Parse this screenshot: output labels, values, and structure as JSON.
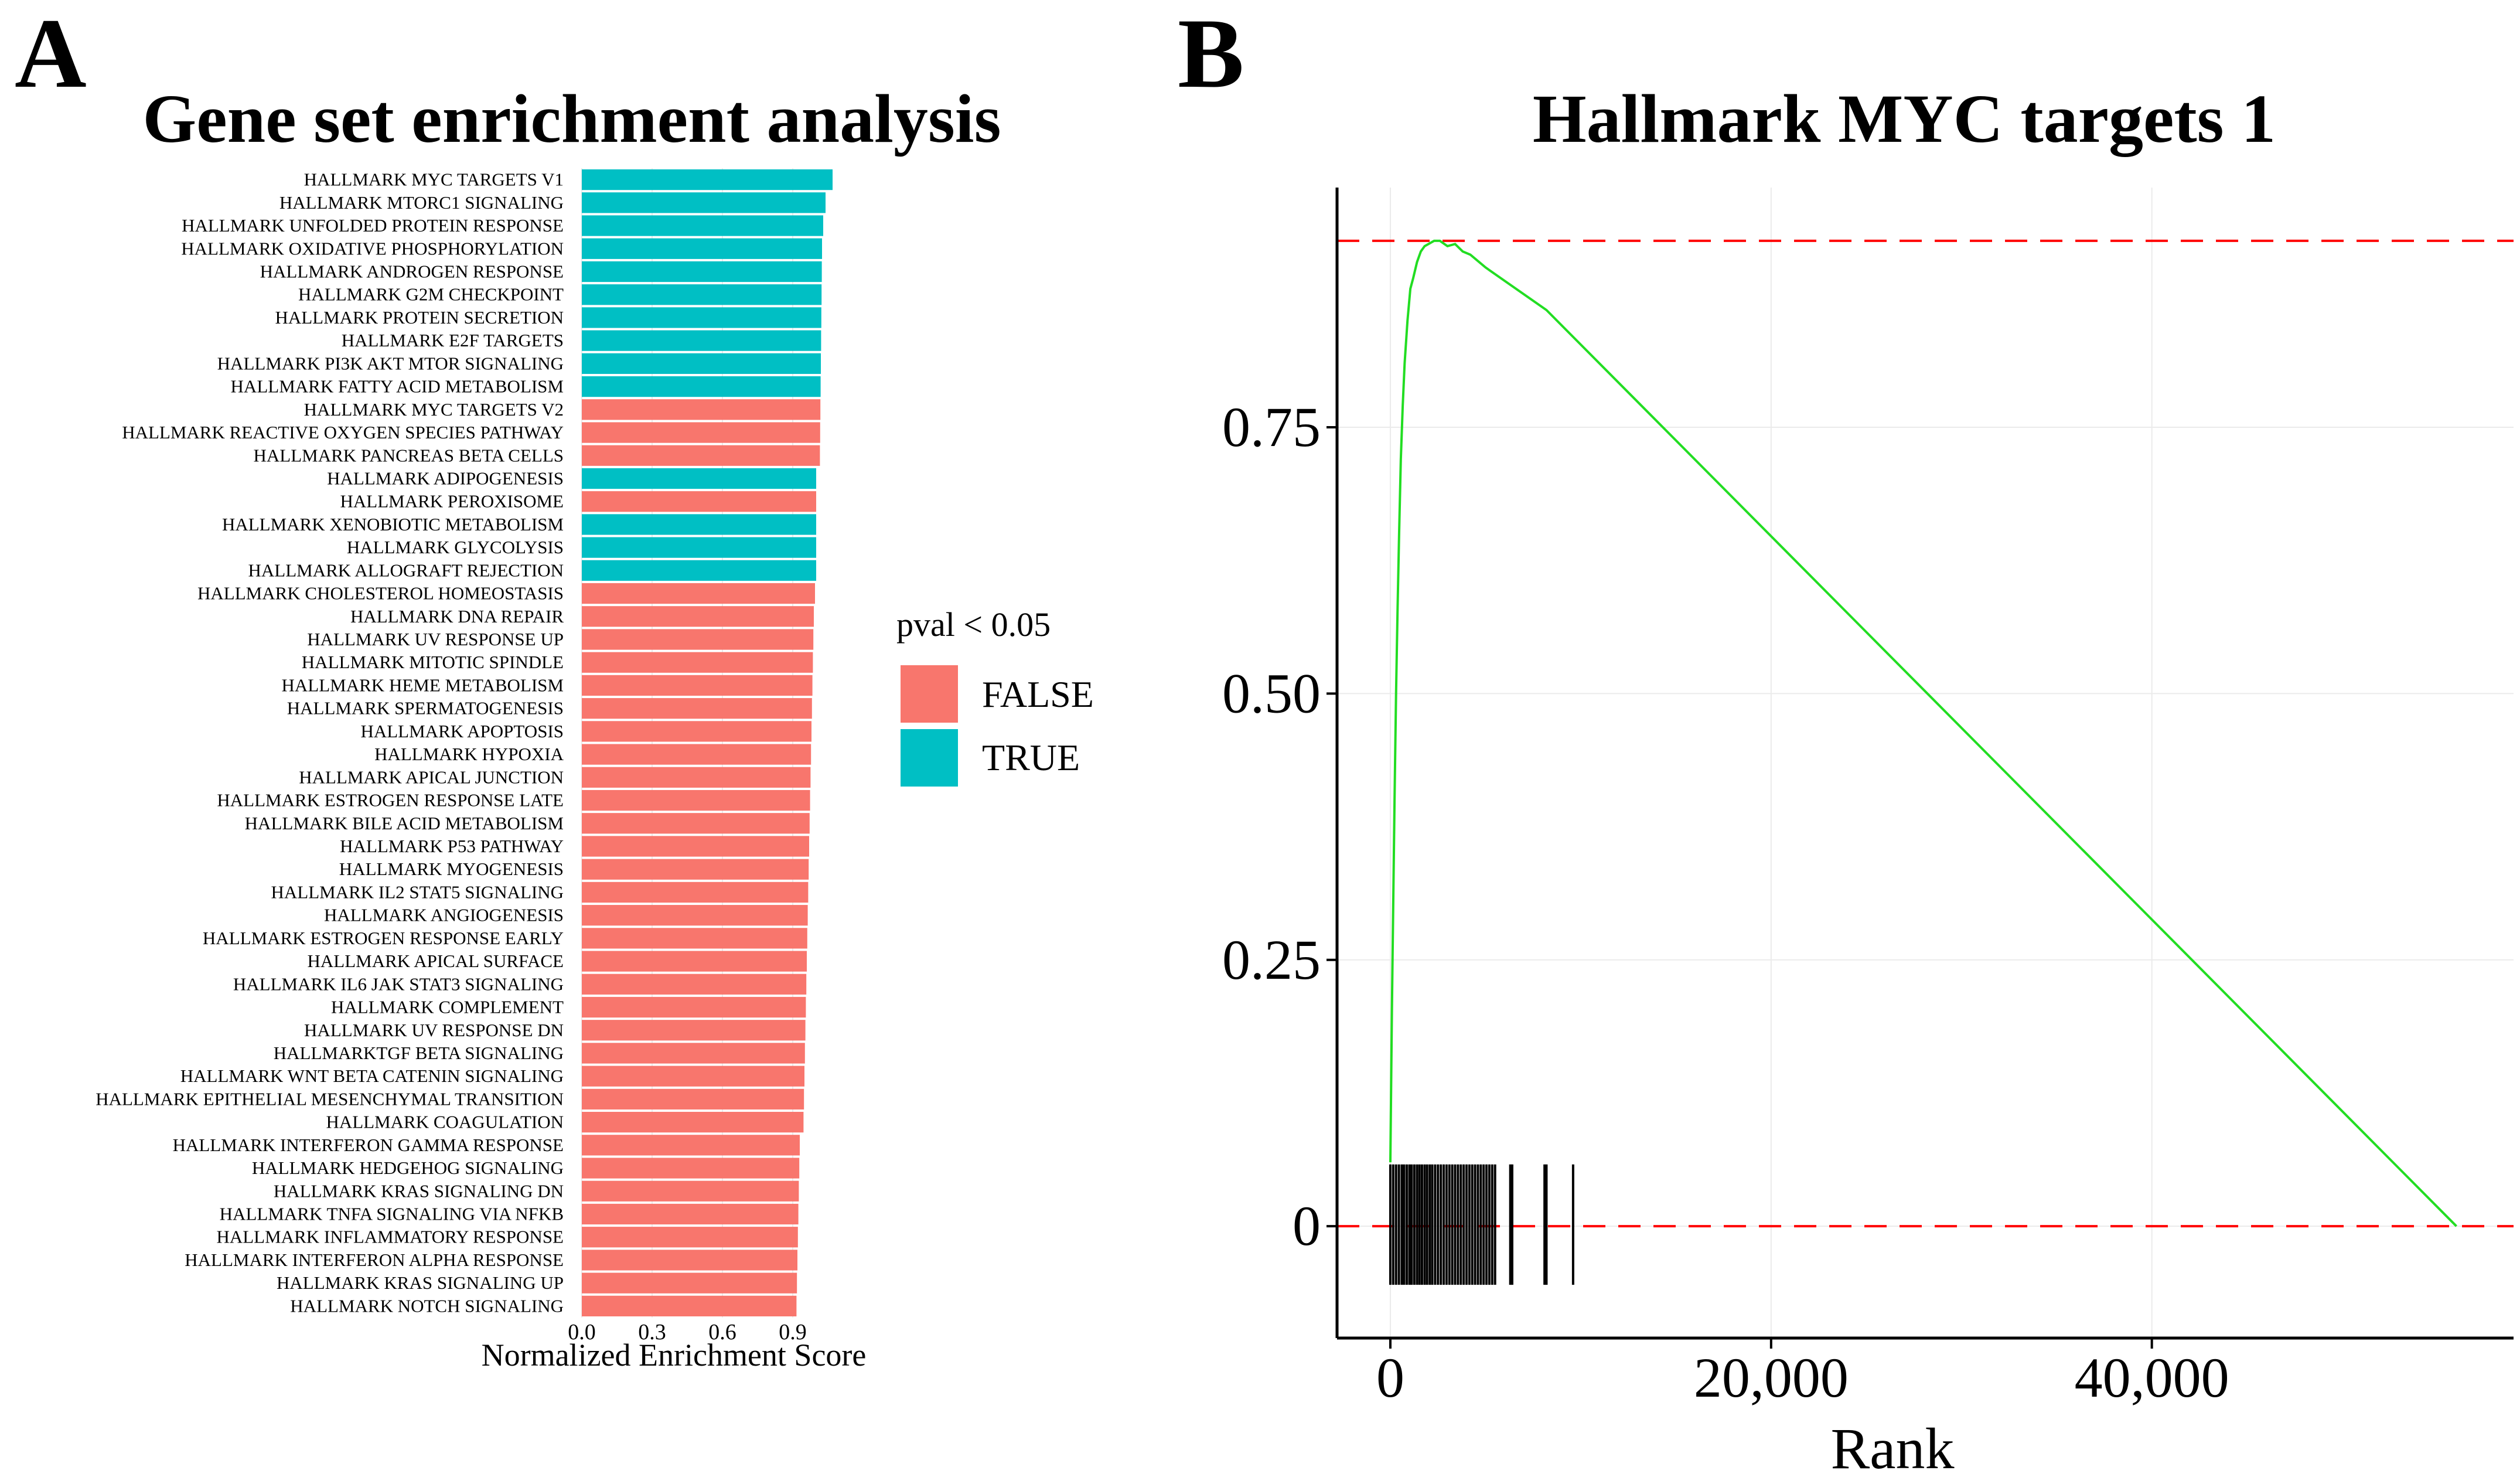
{
  "panel_a_letter": "A",
  "panel_b_letter": "B",
  "chart_data": [
    {
      "type": "bar",
      "orientation": "horizontal",
      "title": "Gene set enrichment analysis",
      "xlabel": "Normalized Enrichment Score",
      "ylabel": "",
      "xlim": [
        0,
        1.1
      ],
      "xticks": [
        "0.0",
        "0.3",
        "0.6",
        "0.9"
      ],
      "xtick_values": [
        0,
        0.3,
        0.6,
        0.9
      ],
      "legend": {
        "title": "pval < 0.05",
        "position": "right",
        "entries": [
          {
            "label": "FALSE",
            "color": "#F8766D"
          },
          {
            "label": "TRUE",
            "color": "#00BFC4"
          }
        ]
      },
      "categories": [
        "HALLMARK MYC TARGETS V1",
        "HALLMARK MTORC1 SIGNALING",
        "HALLMARK UNFOLDED PROTEIN RESPONSE",
        "HALLMARK OXIDATIVE PHOSPHORYLATION",
        "HALLMARK ANDROGEN RESPONSE",
        "HALLMARK G2M CHECKPOINT",
        "HALLMARK PROTEIN SECRETION",
        "HALLMARK E2F TARGETS",
        "HALLMARK PI3K AKT MTOR SIGNALING",
        "HALLMARK FATTY ACID METABOLISM",
        "HALLMARK MYC TARGETS V2",
        "HALLMARK REACTIVE OXYGEN SPECIES PATHWAY",
        "HALLMARK PANCREAS BETA CELLS",
        "HALLMARK ADIPOGENESIS",
        "HALLMARK PEROXISOME",
        "HALLMARK XENOBIOTIC METABOLISM",
        "HALLMARK GLYCOLYSIS",
        "HALLMARK ALLOGRAFT REJECTION",
        "HALLMARK CHOLESTEROL HOMEOSTASIS",
        "HALLMARK DNA REPAIR",
        "HALLMARK UV RESPONSE UP",
        "HALLMARK MITOTIC SPINDLE",
        "HALLMARK HEME METABOLISM",
        "HALLMARK SPERMATOGENESIS",
        "HALLMARK APOPTOSIS",
        "HALLMARK HYPOXIA",
        "HALLMARK APICAL JUNCTION",
        "HALLMARK ESTROGEN RESPONSE LATE",
        "HALLMARK BILE ACID METABOLISM",
        "HALLMARK P53 PATHWAY",
        "HALLMARK MYOGENESIS",
        "HALLMARK IL2 STAT5 SIGNALING",
        "HALLMARK ANGIOGENESIS",
        "HALLMARK ESTROGEN RESPONSE EARLY",
        "HALLMARK APICAL SURFACE",
        "HALLMARK IL6 JAK STAT3 SIGNALING",
        "HALLMARK COMPLEMENT",
        "HALLMARK UV RESPONSE DN",
        "HALLMARKTGF BETA SIGNALING",
        "HALLMARK WNT BETA CATENIN SIGNALING",
        "HALLMARK EPITHELIAL MESENCHYMAL TRANSITION",
        "HALLMARK COAGULATION",
        "HALLMARK INTERFERON GAMMA RESPONSE",
        "HALLMARK HEDGEHOG SIGNALING",
        "HALLMARK KRAS SIGNALING DN",
        "HALLMARK TNFA SIGNALING VIA NFKB",
        "HALLMARK INFLAMMATORY RESPONSE",
        "HALLMARK INTERFERON ALPHA RESPONSE",
        "HALLMARK KRAS SIGNALING UP",
        "HALLMARK NOTCH SIGNALING"
      ],
      "values": [
        1.07,
        1.04,
        1.03,
        1.025,
        1.024,
        1.023,
        1.022,
        1.021,
        1.02,
        1.019,
        1.018,
        1.017,
        1.016,
        1.0,
        1.0,
        1.0,
        1.0,
        1.0,
        0.995,
        0.99,
        0.988,
        0.986,
        0.984,
        0.982,
        0.98,
        0.978,
        0.976,
        0.974,
        0.972,
        0.97,
        0.968,
        0.966,
        0.964,
        0.962,
        0.96,
        0.958,
        0.956,
        0.954,
        0.952,
        0.95,
        0.948,
        0.946,
        0.93,
        0.928,
        0.926,
        0.924,
        0.922,
        0.92,
        0.918,
        0.916
      ],
      "significant": [
        true,
        true,
        true,
        true,
        true,
        true,
        true,
        true,
        true,
        true,
        false,
        false,
        false,
        true,
        false,
        true,
        true,
        true,
        false,
        false,
        false,
        false,
        false,
        false,
        false,
        false,
        false,
        false,
        false,
        false,
        false,
        false,
        false,
        false,
        false,
        false,
        false,
        false,
        false,
        false,
        false,
        false,
        false,
        false,
        false,
        false,
        false,
        false,
        false,
        false
      ]
    },
    {
      "type": "line",
      "title": "Hallmark MYC targets 1",
      "xlabel": "Rank",
      "ylabel": "",
      "xlim": [
        -2800,
        59000
      ],
      "ylim": [
        -0.105,
        0.975
      ],
      "xticks": [
        "0",
        "20,000",
        "40,000"
      ],
      "xtick_values": [
        0,
        20000,
        40000
      ],
      "yticks": [
        "0",
        "0.25",
        "0.50",
        "0.75"
      ],
      "ytick_values": [
        0,
        0.25,
        0.5,
        0.75
      ],
      "reference_lines": [
        0.925,
        0
      ],
      "series": [
        {
          "name": "enrichment score",
          "color": "#22DD22",
          "x": [
            0,
            80,
            150,
            220,
            300,
            380,
            460,
            550,
            650,
            750,
            900,
            1050,
            1200,
            1400,
            1600,
            1800,
            2000,
            2300,
            2600,
            3000,
            3400,
            3800,
            4200,
            5000,
            6200,
            8200,
            56000
          ],
          "y": [
            0.06,
            0.2,
            0.3,
            0.4,
            0.5,
            0.58,
            0.65,
            0.72,
            0.77,
            0.81,
            0.85,
            0.88,
            0.89,
            0.905,
            0.915,
            0.92,
            0.922,
            0.925,
            0.925,
            0.92,
            0.922,
            0.915,
            0.912,
            0.9,
            0.885,
            0.86,
            0
          ]
        }
      ],
      "rug": {
        "color": "#000000",
        "y_range": [
          -0.055,
          0.058
        ],
        "x": [
          0,
          150,
          300,
          450,
          600,
          720,
          860,
          1000,
          1120,
          1260,
          1400,
          1530,
          1660,
          1800,
          1930,
          2070,
          2200,
          2350,
          2500,
          2650,
          2800,
          2950,
          3100,
          3250,
          3400,
          3550,
          3700,
          3850,
          4000,
          4150,
          4300,
          4450,
          4600,
          4750,
          4900,
          5050,
          5200,
          5350,
          5500,
          6300,
          6400,
          8100,
          8200,
          9600
        ]
      }
    }
  ]
}
